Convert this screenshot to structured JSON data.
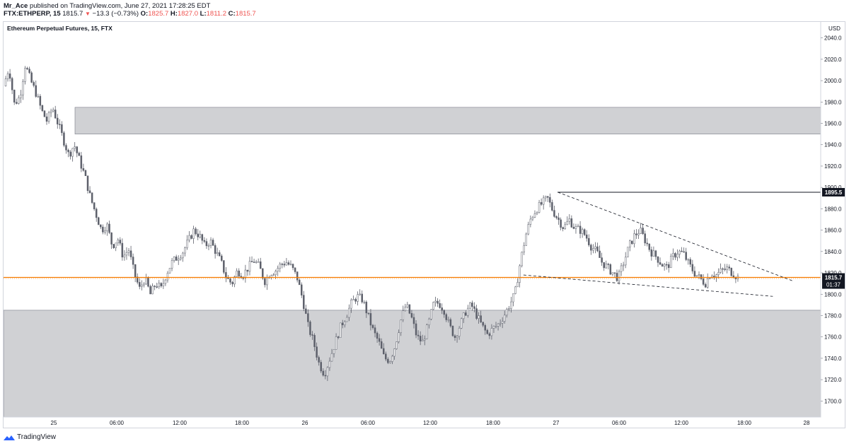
{
  "header": {
    "publisher": "Mr_Ace",
    "published_text": "published on TradingView.com, June 27, 2021 17:28:25 EDT",
    "symbol": "FTX:ETHPERP, 15",
    "last": "1815.7",
    "change": "−13.3 (−0.73%)",
    "o_label": "O:",
    "o": "1825.7",
    "h_label": "H:",
    "h": "1827.0",
    "l_label": "L:",
    "l": "1811.2",
    "c_label": "C:",
    "c": "1815.7"
  },
  "chart_title": "Ethereum Perpetual Futures, 15, FTX",
  "currency": "USD",
  "footer_brand": "TradingView",
  "colors": {
    "accent": "#f57c00",
    "zone": "#c8c9cc",
    "candle": "#5d606b",
    "ohlc_red": "#ef5350"
  },
  "chart_data": {
    "type": "candlestick",
    "title": "Ethereum Perpetual Futures, 15, FTX",
    "y_unit": "USD",
    "ylim": [
      1685,
      2055
    ],
    "y_ticks": [
      "2040.0",
      "2020.0",
      "2000.0",
      "1980.0",
      "1960.0",
      "1940.0",
      "1920.0",
      "1900.0",
      "1880.0",
      "1860.0",
      "1840.0",
      "1820.0",
      "1800.0",
      "1780.0",
      "1760.0",
      "1740.0",
      "1720.0",
      "1700.0"
    ],
    "x_ticks": [
      "25",
      "06:00",
      "12:00",
      "18:00",
      "26",
      "06:00",
      "12:00",
      "18:00",
      "27",
      "06:00",
      "12:00",
      "18:00",
      "28"
    ],
    "price_labels": {
      "level": "1895.5",
      "last": "1815.7",
      "countdown": "01:37"
    },
    "path": [
      1995,
      2012,
      1978,
      1985,
      2015,
      2000,
      1988,
      1972,
      1962,
      1975,
      1960,
      1945,
      1930,
      1940,
      1925,
      1910,
      1890,
      1875,
      1860,
      1865,
      1845,
      1852,
      1835,
      1842,
      1820,
      1805,
      1815,
      1800,
      1810,
      1805,
      1820,
      1830,
      1835,
      1840,
      1850,
      1860,
      1855,
      1845,
      1850,
      1840,
      1830,
      1815,
      1810,
      1822,
      1818,
      1825,
      1832,
      1826,
      1812,
      1820,
      1822,
      1828,
      1830,
      1825,
      1815,
      1795,
      1770,
      1755,
      1735,
      1725,
      1740,
      1755,
      1770,
      1780,
      1792,
      1798,
      1795,
      1780,
      1765,
      1755,
      1740,
      1738,
      1752,
      1775,
      1790,
      1778,
      1760,
      1755,
      1770,
      1790,
      1792,
      1785,
      1770,
      1760,
      1772,
      1784,
      1790,
      1780,
      1770,
      1762,
      1768,
      1772,
      1780,
      1790,
      1800,
      1830,
      1855,
      1872,
      1880,
      1885,
      1890,
      1878,
      1870,
      1862,
      1870,
      1862,
      1860,
      1855,
      1845,
      1840,
      1830,
      1825,
      1820,
      1815,
      1830,
      1845,
      1855,
      1860,
      1850,
      1840,
      1835,
      1828,
      1825,
      1835,
      1840,
      1838,
      1828,
      1820,
      1815,
      1810,
      1820,
      1818,
      1822,
      1824,
      1820,
      1815.7
    ],
    "zones": [
      {
        "from": 1950,
        "to": 1975
      },
      {
        "from": 1685,
        "to": 1785
      }
    ],
    "levels": [
      {
        "y": 1895.5,
        "style": "solid"
      },
      {
        "y": 1815.7,
        "style": "current"
      }
    ],
    "trendlines": [
      {
        "x1": 0.661,
        "y1": 1895.5,
        "x2": 0.938,
        "y2": 1812
      },
      {
        "x1": 0.619,
        "y1": 1818,
        "x2": 0.912,
        "y2": 1798
      }
    ]
  }
}
